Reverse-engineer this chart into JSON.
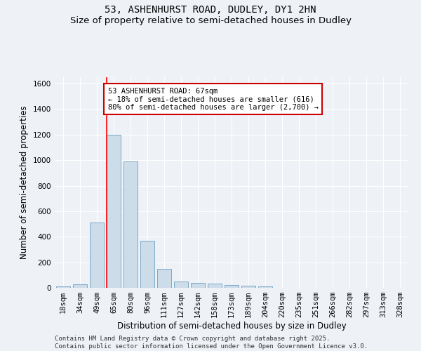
{
  "title_line1": "53, ASHENHURST ROAD, DUDLEY, DY1 2HN",
  "title_line2": "Size of property relative to semi-detached houses in Dudley",
  "xlabel": "Distribution of semi-detached houses by size in Dudley",
  "ylabel": "Number of semi-detached properties",
  "categories": [
    "18sqm",
    "34sqm",
    "49sqm",
    "65sqm",
    "80sqm",
    "96sqm",
    "111sqm",
    "127sqm",
    "142sqm",
    "158sqm",
    "173sqm",
    "189sqm",
    "204sqm",
    "220sqm",
    "235sqm",
    "251sqm",
    "266sqm",
    "282sqm",
    "297sqm",
    "313sqm",
    "328sqm"
  ],
  "values": [
    10,
    25,
    510,
    1200,
    990,
    370,
    148,
    52,
    38,
    32,
    22,
    16,
    12,
    0,
    0,
    0,
    0,
    0,
    0,
    0,
    0
  ],
  "bar_color": "#ccdce8",
  "bar_edge_color": "#7aaac8",
  "red_line_index": 3,
  "annotation_text": "53 ASHENHURST ROAD: 67sqm\n← 18% of semi-detached houses are smaller (616)\n80% of semi-detached houses are larger (2,700) →",
  "annotation_box_color": "#ffffff",
  "annotation_box_edge_color": "#cc0000",
  "ylim": [
    0,
    1650
  ],
  "yticks": [
    0,
    200,
    400,
    600,
    800,
    1000,
    1200,
    1400,
    1600
  ],
  "background_color": "#eef2f7",
  "grid_color": "#ffffff",
  "title_fontsize": 10,
  "subtitle_fontsize": 9.5,
  "axis_label_fontsize": 8.5,
  "tick_fontsize": 7.5,
  "annotation_fontsize": 7.5,
  "footer_fontsize": 6.5,
  "footer_line1": "Contains HM Land Registry data © Crown copyright and database right 2025.",
  "footer_line2": "Contains public sector information licensed under the Open Government Licence v3.0."
}
